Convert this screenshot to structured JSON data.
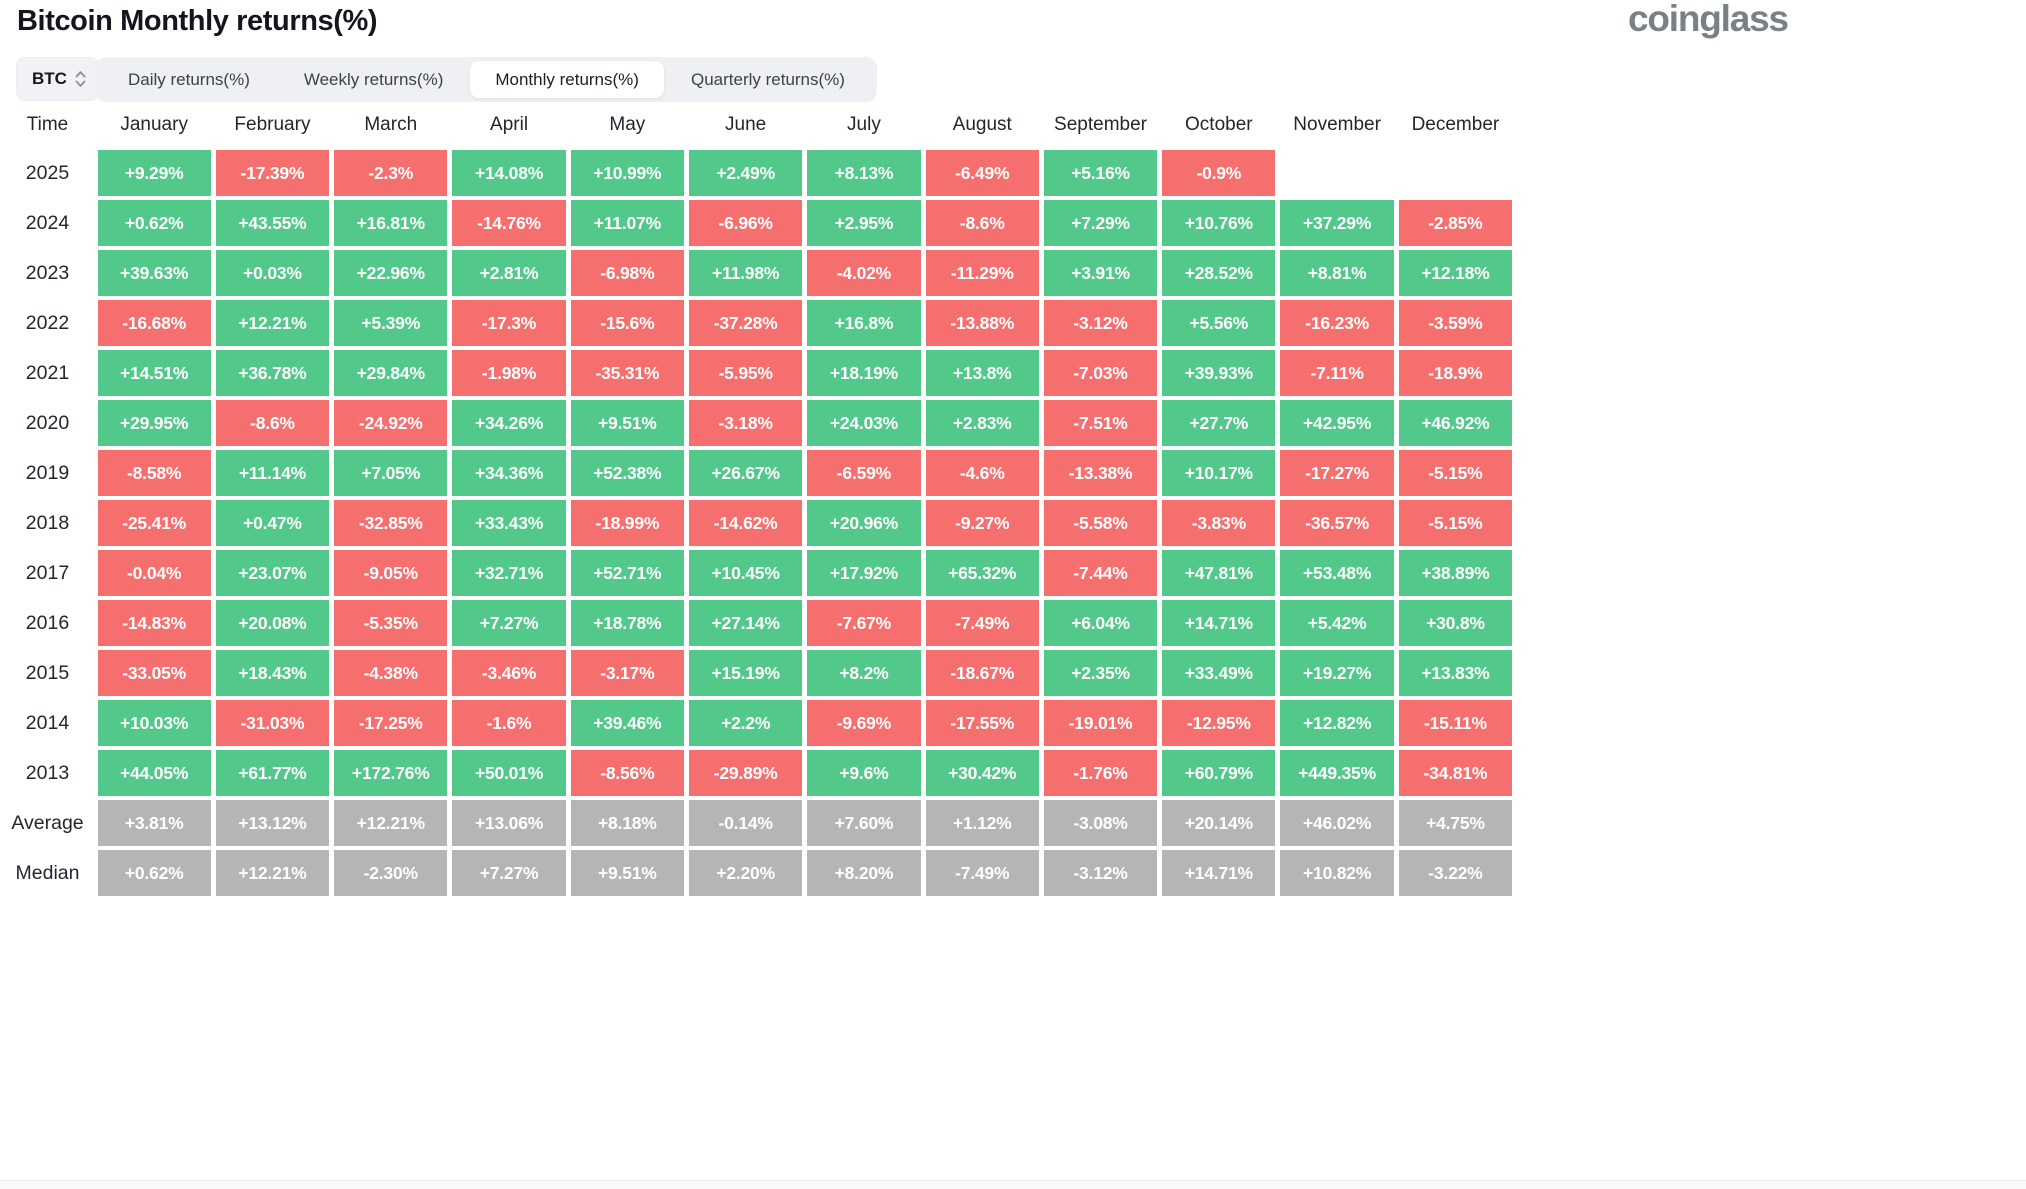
{
  "header": {
    "title": "Bitcoin Monthly returns(%)",
    "brand": "coinglass"
  },
  "controls": {
    "coin_selector": {
      "value": "BTC",
      "icon": "up-down-chevron-icon"
    },
    "tabs": [
      {
        "label": "Daily returns(%)",
        "active": false
      },
      {
        "label": "Weekly returns(%)",
        "active": false
      },
      {
        "label": "Monthly returns(%)",
        "active": true
      },
      {
        "label": "Quarterly returns(%)",
        "active": false
      }
    ]
  },
  "colors": {
    "positive": "#52c98b",
    "negative": "#f56f6e",
    "neutral": "#b5b5b5"
  },
  "chart_data": {
    "type": "table",
    "title": "Bitcoin Monthly returns(%)",
    "columns": [
      "Time",
      "January",
      "February",
      "March",
      "April",
      "May",
      "June",
      "July",
      "August",
      "September",
      "October",
      "November",
      "December"
    ],
    "rows": [
      {
        "label": "2025",
        "summary": false,
        "values": [
          "+9.29%",
          "-17.39%",
          "-2.3%",
          "+14.08%",
          "+10.99%",
          "+2.49%",
          "+8.13%",
          "-6.49%",
          "+5.16%",
          "-0.9%",
          "",
          ""
        ]
      },
      {
        "label": "2024",
        "summary": false,
        "values": [
          "+0.62%",
          "+43.55%",
          "+16.81%",
          "-14.76%",
          "+11.07%",
          "-6.96%",
          "+2.95%",
          "-8.6%",
          "+7.29%",
          "+10.76%",
          "+37.29%",
          "-2.85%"
        ]
      },
      {
        "label": "2023",
        "summary": false,
        "values": [
          "+39.63%",
          "+0.03%",
          "+22.96%",
          "+2.81%",
          "-6.98%",
          "+11.98%",
          "-4.02%",
          "-11.29%",
          "+3.91%",
          "+28.52%",
          "+8.81%",
          "+12.18%"
        ]
      },
      {
        "label": "2022",
        "summary": false,
        "values": [
          "-16.68%",
          "+12.21%",
          "+5.39%",
          "-17.3%",
          "-15.6%",
          "-37.28%",
          "+16.8%",
          "-13.88%",
          "-3.12%",
          "+5.56%",
          "-16.23%",
          "-3.59%"
        ]
      },
      {
        "label": "2021",
        "summary": false,
        "values": [
          "+14.51%",
          "+36.78%",
          "+29.84%",
          "-1.98%",
          "-35.31%",
          "-5.95%",
          "+18.19%",
          "+13.8%",
          "-7.03%",
          "+39.93%",
          "-7.11%",
          "-18.9%"
        ]
      },
      {
        "label": "2020",
        "summary": false,
        "values": [
          "+29.95%",
          "-8.6%",
          "-24.92%",
          "+34.26%",
          "+9.51%",
          "-3.18%",
          "+24.03%",
          "+2.83%",
          "-7.51%",
          "+27.7%",
          "+42.95%",
          "+46.92%"
        ]
      },
      {
        "label": "2019",
        "summary": false,
        "values": [
          "-8.58%",
          "+11.14%",
          "+7.05%",
          "+34.36%",
          "+52.38%",
          "+26.67%",
          "-6.59%",
          "-4.6%",
          "-13.38%",
          "+10.17%",
          "-17.27%",
          "-5.15%"
        ]
      },
      {
        "label": "2018",
        "summary": false,
        "values": [
          "-25.41%",
          "+0.47%",
          "-32.85%",
          "+33.43%",
          "-18.99%",
          "-14.62%",
          "+20.96%",
          "-9.27%",
          "-5.58%",
          "-3.83%",
          "-36.57%",
          "-5.15%"
        ]
      },
      {
        "label": "2017",
        "summary": false,
        "values": [
          "-0.04%",
          "+23.07%",
          "-9.05%",
          "+32.71%",
          "+52.71%",
          "+10.45%",
          "+17.92%",
          "+65.32%",
          "-7.44%",
          "+47.81%",
          "+53.48%",
          "+38.89%"
        ]
      },
      {
        "label": "2016",
        "summary": false,
        "values": [
          "-14.83%",
          "+20.08%",
          "-5.35%",
          "+7.27%",
          "+18.78%",
          "+27.14%",
          "-7.67%",
          "-7.49%",
          "+6.04%",
          "+14.71%",
          "+5.42%",
          "+30.8%"
        ]
      },
      {
        "label": "2015",
        "summary": false,
        "values": [
          "-33.05%",
          "+18.43%",
          "-4.38%",
          "-3.46%",
          "-3.17%",
          "+15.19%",
          "+8.2%",
          "-18.67%",
          "+2.35%",
          "+33.49%",
          "+19.27%",
          "+13.83%"
        ]
      },
      {
        "label": "2014",
        "summary": false,
        "values": [
          "+10.03%",
          "-31.03%",
          "-17.25%",
          "-1.6%",
          "+39.46%",
          "+2.2%",
          "-9.69%",
          "-17.55%",
          "-19.01%",
          "-12.95%",
          "+12.82%",
          "-15.11%"
        ]
      },
      {
        "label": "2013",
        "summary": false,
        "values": [
          "+44.05%",
          "+61.77%",
          "+172.76%",
          "+50.01%",
          "-8.56%",
          "-29.89%",
          "+9.6%",
          "+30.42%",
          "-1.76%",
          "+60.79%",
          "+449.35%",
          "-34.81%"
        ]
      },
      {
        "label": "Average",
        "summary": true,
        "values": [
          "+3.81%",
          "+13.12%",
          "+12.21%",
          "+13.06%",
          "+8.18%",
          "-0.14%",
          "+7.60%",
          "+1.12%",
          "-3.08%",
          "+20.14%",
          "+46.02%",
          "+4.75%"
        ]
      },
      {
        "label": "Median",
        "summary": true,
        "values": [
          "+0.62%",
          "+12.21%",
          "-2.30%",
          "+7.27%",
          "+9.51%",
          "+2.20%",
          "+8.20%",
          "-7.49%",
          "-3.12%",
          "+14.71%",
          "+10.82%",
          "-3.22%"
        ]
      }
    ]
  }
}
